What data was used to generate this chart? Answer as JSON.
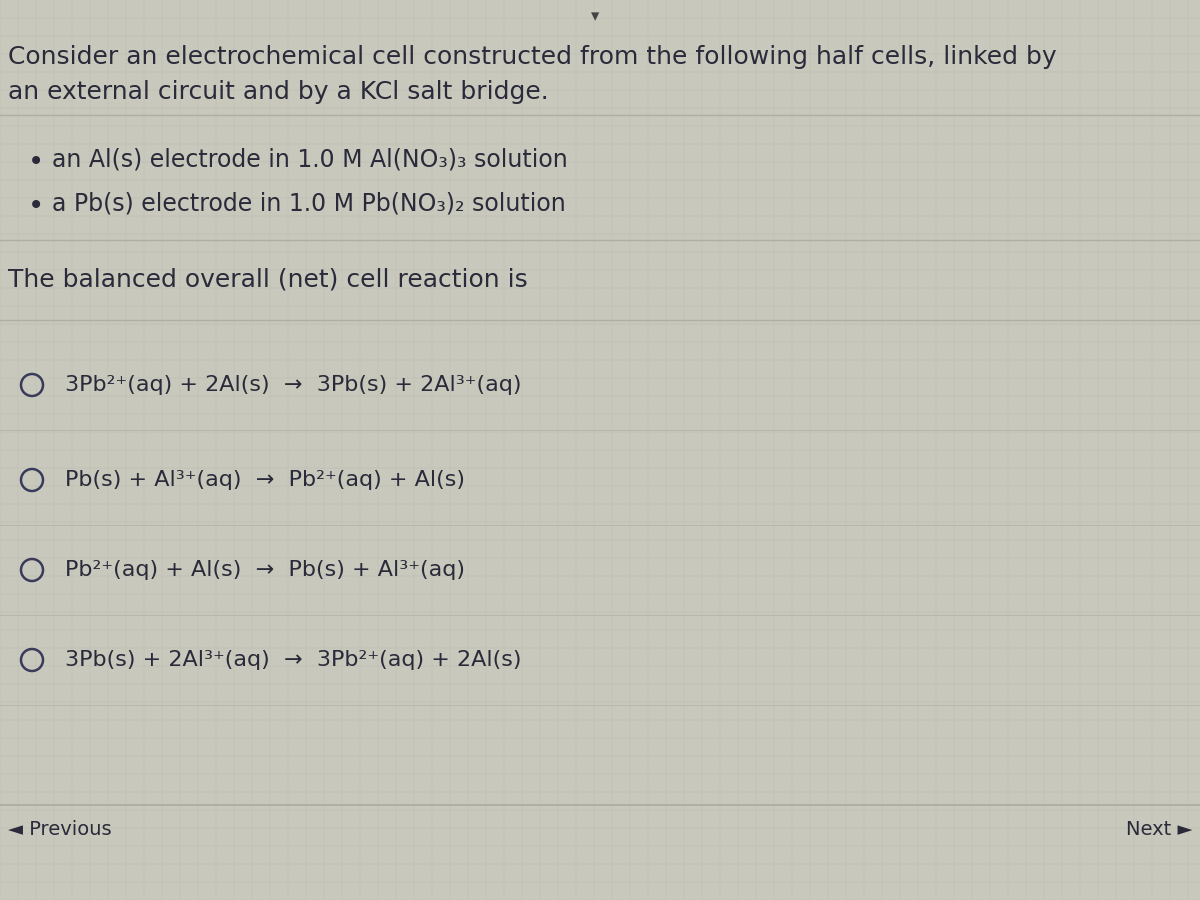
{
  "bg_color": "#c8c9bc",
  "text_color": "#2a2a3a",
  "title_line1": "Consider an electrochemical cell constructed from the following half cells, linked by",
  "title_line2": "an external circuit and by a KCl salt bridge.",
  "bullet1": "an Al(s) electrode in 1.0 M Al(NO₃)₃ solution",
  "bullet2": "a Pb(s) electrode in 1.0 M Pb(NO₃)₂ solution",
  "subtitle": "The balanced overall (net) cell reaction is",
  "options": [
    "3Pb²⁺(aq) + 2Al(s)  →  3Pb(s) + 2Al³⁺(aq)",
    "Pb(s) + Al³⁺(aq)  →  Pb²⁺(aq) + Al(s)",
    "Pb²⁺(aq) + Al(s)  →  Pb(s) + Al³⁺(aq)",
    "3Pb(s) + 2Al³⁺(aq)  →  3Pb²⁺(aq) + 2Al(s)"
  ],
  "footer_left": "◄ Previous",
  "footer_right": "Next ►",
  "grid_color": "#b0b1a5",
  "divider_color": "#a8a99c",
  "font_size_title": 18,
  "font_size_bullet": 17,
  "font_size_option": 16,
  "font_size_footer": 14,
  "circle_color": "#3a3a5a"
}
